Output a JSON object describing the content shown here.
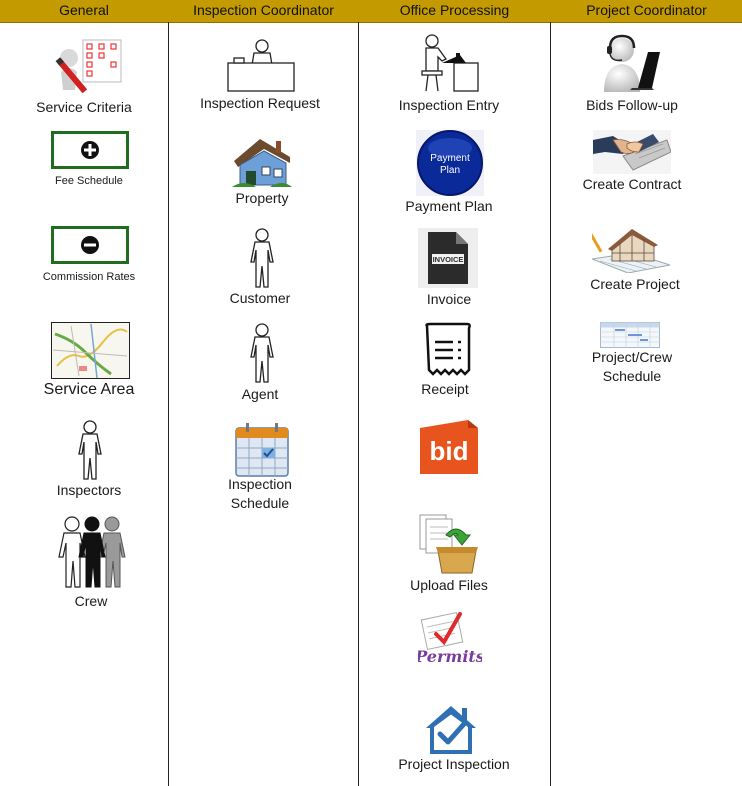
{
  "columns": [
    {
      "title": "General",
      "items": [
        {
          "label": "Service Criteria",
          "icon": "checklist-pencil-icon"
        },
        {
          "label": "Fee Schedule",
          "icon": "plus-button-icon"
        },
        {
          "label": "Commission Rates",
          "icon": "minus-button-icon"
        },
        {
          "label": "Service Area",
          "icon": "map-icon"
        },
        {
          "label": "Inspectors",
          "icon": "person-icon"
        },
        {
          "label": "Crew",
          "icon": "group-people-icon"
        }
      ]
    },
    {
      "title": "Inspection Coordinator",
      "items": [
        {
          "label": "Inspection Request",
          "icon": "desk-person-icon"
        },
        {
          "label": "Property",
          "icon": "house-icon"
        },
        {
          "label": "Customer",
          "icon": "person-icon"
        },
        {
          "label": "Agent",
          "icon": "person-icon"
        },
        {
          "label": "Inspection\nSchedule",
          "icon": "calendar-icon"
        }
      ]
    },
    {
      "title": "Office Processing",
      "items": [
        {
          "label": "Inspection Entry",
          "icon": "computer-user-icon"
        },
        {
          "label": "Payment Plan",
          "icon": "payment-plan-button-icon",
          "badge": "Payment\nPlan"
        },
        {
          "label": "Invoice",
          "icon": "invoice-file-icon",
          "badge": "INVOICE"
        },
        {
          "label": "Receipt",
          "icon": "receipt-icon"
        },
        {
          "label": "",
          "icon": "bid-logo-icon",
          "badge": "bid"
        },
        {
          "label": "Upload Files",
          "icon": "upload-files-icon"
        },
        {
          "label": "",
          "icon": "permits-logo-icon",
          "badge": "Permits"
        },
        {
          "label": "Project Inspection",
          "icon": "house-check-icon"
        }
      ]
    },
    {
      "title": "Project Coordinator",
      "items": [
        {
          "label": "Bids Follow-up",
          "icon": "headset-laptop-icon"
        },
        {
          "label": "Create Contract",
          "icon": "handshake-icon"
        },
        {
          "label": "Create Project",
          "icon": "house-blueprint-icon"
        },
        {
          "label": "Project/Crew\nSchedule",
          "icon": "schedule-sheet-icon"
        }
      ]
    }
  ],
  "colors": {
    "header_bg": "#c39a00",
    "frame_green": "#1f6e1f",
    "payment_blue": "#0a2a9a",
    "bid_orange": "#e8541e",
    "permits_purple": "#7a3e9a",
    "house_blue": "#2f6fb3"
  }
}
